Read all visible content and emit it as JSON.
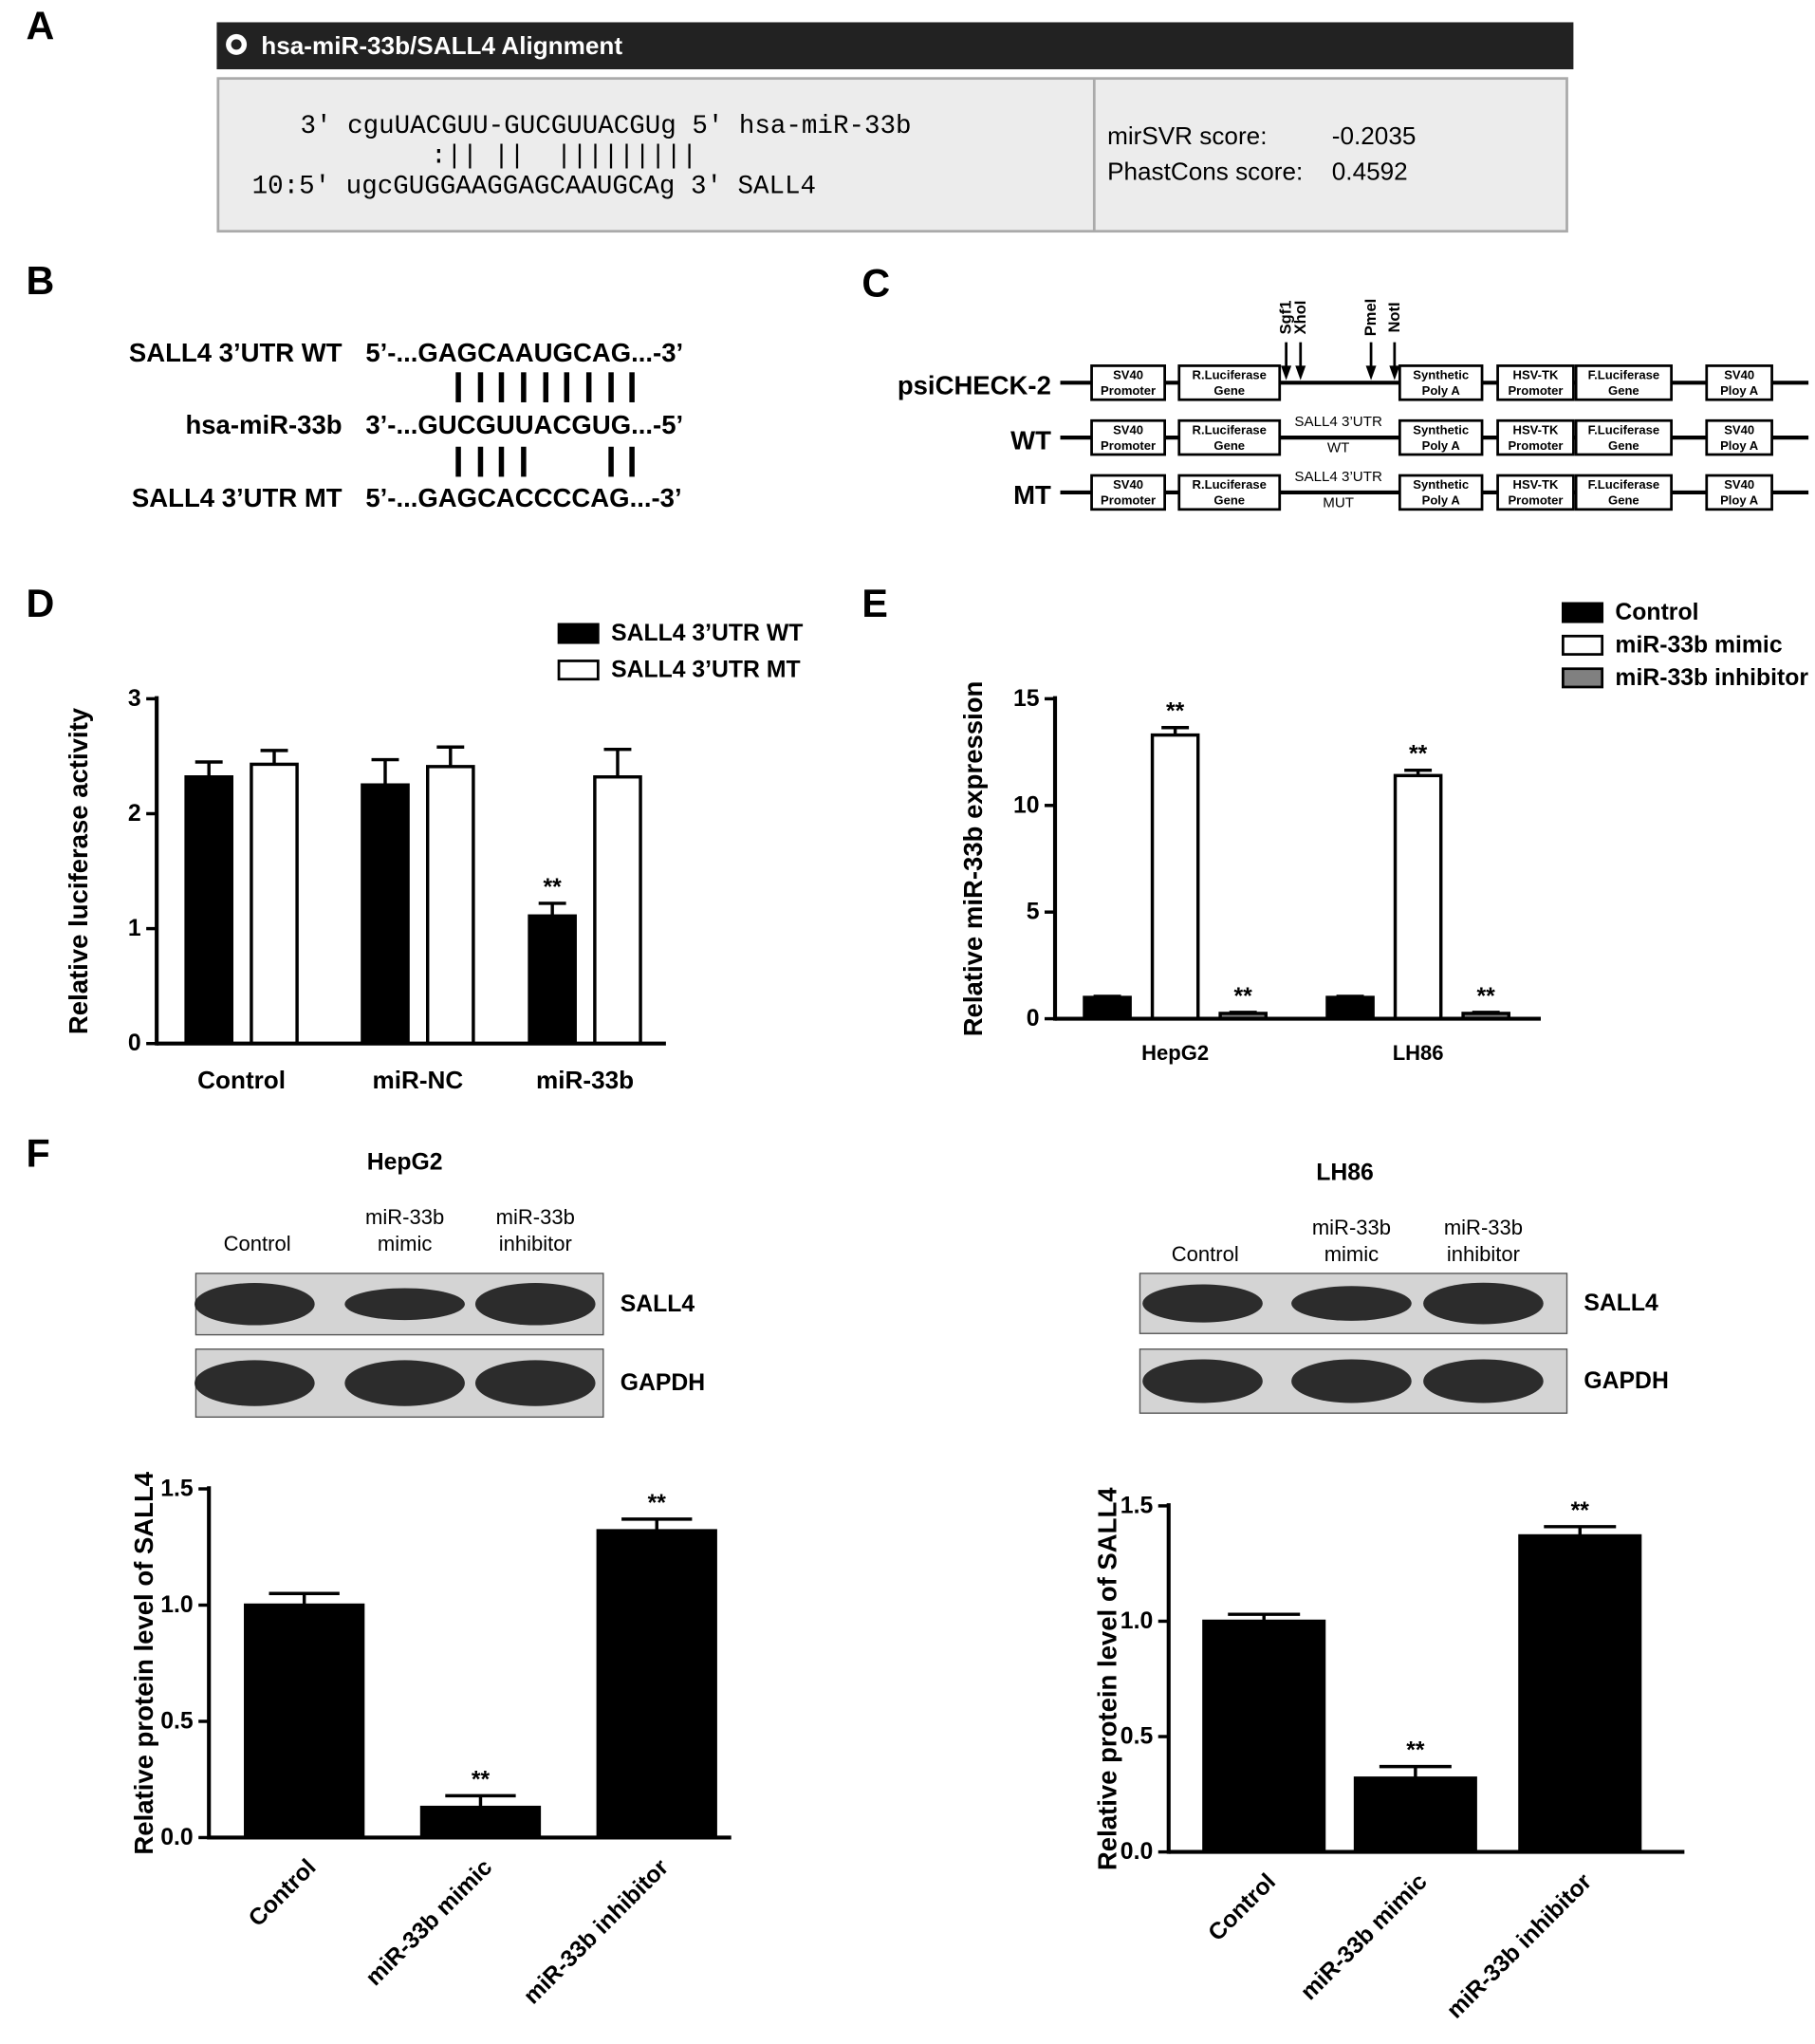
{
  "panel_letters": [
    "A",
    "B",
    "C",
    "D",
    "E",
    "F"
  ],
  "alignment": {
    "title": "hsa-miR-33b/SALL4 Alignment",
    "lines": [
      "3' cguUACGUU-GUCGUUACGUg 5' hsa-miR-33b",
      ":|| ||  |||||||||",
      "10:5' ugcGUGGAAGGAGCAAUGCAg 3' SALL4"
    ],
    "scores": [
      {
        "label": "mirSVR score:",
        "value": -0.2035
      },
      {
        "label": "PhastCons score:",
        "value": 0.4592
      }
    ]
  },
  "sequences": [
    {
      "label": "SALL4 3’UTR WT",
      "seq": "5’-...GAGCAAUGCAG...-3’"
    },
    {
      "label": "hsa-miR-33b",
      "seq": "3’-...GUCGUUACGUG...-5’"
    },
    {
      "label": "SALL4 3’UTR MT",
      "seq": "5’-...GAGCACCCCAG...-3’"
    }
  ],
  "construct": {
    "sites": [
      "Sgf1",
      "XhoI",
      "PmeI",
      "NotI"
    ],
    "elements": [
      [
        "SV40",
        "Promoter"
      ],
      [
        "R.Luciferase",
        "Gene"
      ],
      [
        "Synthetic",
        "Poly A"
      ],
      [
        "HSV-TK",
        "Promoter"
      ],
      [
        "F.Luciferase",
        "Gene"
      ],
      [
        "SV40",
        "Ploy A"
      ]
    ],
    "rows": [
      {
        "label": "psiCHECK-2"
      },
      {
        "label": "WT",
        "insert": [
          "SALL4 3’UTR",
          "WT"
        ]
      },
      {
        "label": "MT",
        "insert": [
          "SALL4 3’UTR",
          "MUT"
        ]
      }
    ]
  },
  "blots": [
    {
      "title": "HepG2",
      "lanes": [
        [
          "Control"
        ],
        [
          "miR-33b",
          "mimic"
        ],
        [
          "miR-33b",
          "inhibitor"
        ]
      ],
      "proteins": [
        "SALL4",
        "GAPDH"
      ]
    },
    {
      "title": "LH86",
      "lanes": [
        [
          "Control"
        ],
        [
          "miR-33b",
          "mimic"
        ],
        [
          "miR-33b",
          "inhibitor"
        ]
      ],
      "proteins": [
        "SALL4",
        "GAPDH"
      ]
    }
  ],
  "chart_data": [
    {
      "type": "bar",
      "ylabel": "Relative luciferase activity",
      "categories": [
        "Control",
        "miR-NC",
        "miR-33b"
      ],
      "series": [
        {
          "name": "SALL4 3’UTR WT",
          "color": "#000000",
          "values": [
            2.32,
            2.25,
            1.11
          ],
          "errors": [
            0.13,
            0.22,
            0.11
          ],
          "annotations": [
            null,
            null,
            "**"
          ]
        },
        {
          "name": "SALL4 3’UTR MT",
          "color": "#ffffff",
          "values": [
            2.43,
            2.41,
            2.32
          ],
          "errors": [
            0.12,
            0.17,
            0.24
          ]
        }
      ],
      "ylim": [
        0,
        3
      ],
      "yticks": [
        0,
        1,
        2,
        3
      ],
      "legend": "top-right"
    },
    {
      "type": "bar",
      "ylabel": "Relative miR-33b expression",
      "categories": [
        "HepG2",
        "LH86"
      ],
      "series": [
        {
          "name": "Control",
          "color": "#000000",
          "values": [
            1,
            1
          ],
          "errors": [
            0.05,
            0.05
          ]
        },
        {
          "name": "miR-33b mimic",
          "color": "#ffffff",
          "values": [
            13.3,
            11.4
          ],
          "errors": [
            0.35,
            0.25
          ],
          "annotations": [
            "**",
            "**"
          ]
        },
        {
          "name": "miR-33b inhibitor",
          "color": "#808080",
          "values": [
            0.25,
            0.25
          ],
          "errors": [
            0.05,
            0.05
          ],
          "annotations": [
            "**",
            "**"
          ]
        }
      ],
      "ylim": [
        0,
        15
      ],
      "yticks": [
        0,
        5,
        10,
        15
      ],
      "legend": "top-right"
    },
    {
      "type": "bar",
      "ylabel": "Relative protein level of SALL4",
      "categories": [
        "Control",
        "miR-33b mimic",
        "miR-33b inhibitor"
      ],
      "values": [
        1,
        0.13,
        1.32
      ],
      "errors": [
        0.05,
        0.05,
        0.05
      ],
      "annotations": [
        null,
        "**",
        "**"
      ],
      "color": "#000000",
      "ylim": [
        0,
        1.5
      ],
      "yticks": [
        {
          "value": 0,
          "label": "0.0"
        },
        0.5,
        {
          "value": 1,
          "label": "1.0"
        },
        1.5
      ]
    },
    {
      "type": "bar",
      "ylabel": "Relative protein level of SALL4",
      "categories": [
        "Control",
        "miR-33b mimic",
        "miR-33b inhibitor"
      ],
      "values": [
        1,
        0.32,
        1.37
      ],
      "errors": [
        0.03,
        0.05,
        0.04
      ],
      "annotations": [
        null,
        "**",
        "**"
      ],
      "color": "#000000",
      "ylim": [
        0,
        1.5
      ],
      "yticks": [
        {
          "value": 0,
          "label": "0.0"
        },
        0.5,
        {
          "value": 1,
          "label": "1.0"
        },
        1.5
      ]
    }
  ]
}
